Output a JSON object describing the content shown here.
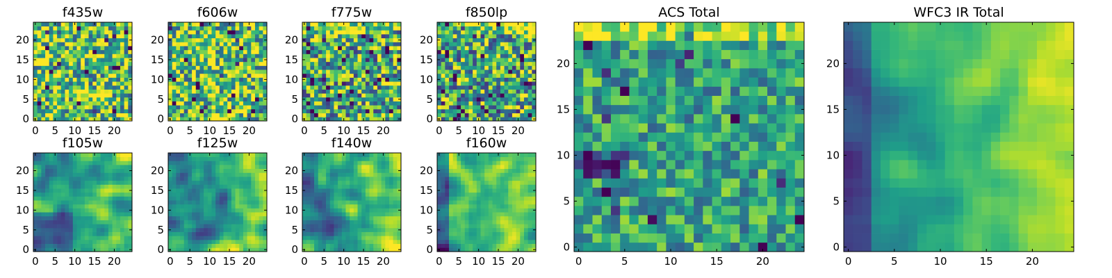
{
  "figure": {
    "colormap": "viridis",
    "colormap_stops": [
      "#440154",
      "#482878",
      "#3e4989",
      "#31688e",
      "#26828e",
      "#1f9e89",
      "#35b779",
      "#6ece58",
      "#b5de2b",
      "#fde725"
    ],
    "axis_color": "#000000",
    "background": "#ffffff"
  },
  "chart_data": [
    {
      "type": "heatmap",
      "title": "f435w",
      "xticks": [
        0,
        5,
        10,
        15,
        20
      ],
      "yticks": [
        0,
        5,
        10,
        15,
        20
      ],
      "grid_size": [
        25,
        25
      ],
      "texture": "noise",
      "pattern": "uniform-noise",
      "value_range": [
        0,
        1
      ]
    },
    {
      "type": "heatmap",
      "title": "f606w",
      "xticks": [
        0,
        5,
        10,
        15,
        20
      ],
      "yticks": [
        0,
        5,
        10,
        15,
        20
      ],
      "grid_size": [
        25,
        25
      ],
      "texture": "noise",
      "pattern": "uniform-noise",
      "value_range": [
        0,
        1
      ]
    },
    {
      "type": "heatmap",
      "title": "f775w",
      "xticks": [
        0,
        5,
        10,
        15,
        20
      ],
      "yticks": [
        0,
        5,
        10,
        15,
        20
      ],
      "grid_size": [
        25,
        25
      ],
      "texture": "noise",
      "pattern": "noise-bright-top-edge",
      "value_range": [
        0,
        1
      ]
    },
    {
      "type": "heatmap",
      "title": "f850lp",
      "xticks": [
        0,
        5,
        10,
        15,
        20
      ],
      "yticks": [
        0,
        5,
        10,
        15,
        20
      ],
      "grid_size": [
        25,
        25
      ],
      "texture": "noise",
      "pattern": "noise-bright-top-edge",
      "value_range": [
        0,
        1
      ]
    },
    {
      "type": "heatmap",
      "title": "f105w",
      "xticks": [
        0,
        5,
        10,
        15,
        20
      ],
      "yticks": [
        0,
        5,
        10,
        15,
        20
      ],
      "grid_size": [
        25,
        25
      ],
      "texture": "smooth",
      "pattern": "smooth-bright-right-dark-lower-left",
      "value_range": [
        0,
        1
      ]
    },
    {
      "type": "heatmap",
      "title": "f125w",
      "xticks": [
        0,
        5,
        10,
        15,
        20
      ],
      "yticks": [
        0,
        5,
        10,
        15,
        20
      ],
      "grid_size": [
        25,
        25
      ],
      "texture": "smooth",
      "pattern": "smooth-bright-right-dark-left",
      "value_range": [
        0,
        1
      ]
    },
    {
      "type": "heatmap",
      "title": "f140w",
      "xticks": [
        0,
        5,
        10,
        15,
        20
      ],
      "yticks": [
        0,
        5,
        10,
        15,
        20
      ],
      "grid_size": [
        25,
        25
      ],
      "texture": "smooth",
      "pattern": "smooth-bright-right-dark-left",
      "value_range": [
        0,
        1
      ]
    },
    {
      "type": "heatmap",
      "title": "f160w",
      "xticks": [
        0,
        5,
        10,
        15,
        20
      ],
      "yticks": [
        0,
        5,
        10,
        15,
        20
      ],
      "grid_size": [
        25,
        25
      ],
      "texture": "smooth",
      "pattern": "smooth-dark-left-edge",
      "value_range": [
        0,
        1
      ]
    },
    {
      "type": "heatmap",
      "title": "ACS Total",
      "xticks": [
        0,
        5,
        10,
        15,
        20
      ],
      "yticks": [
        0,
        5,
        10,
        15,
        20
      ],
      "grid_size": [
        25,
        25
      ],
      "texture": "noise",
      "pattern": "noise-bright-top-dark-bottom-left",
      "value_range": [
        0,
        1
      ]
    },
    {
      "type": "heatmap",
      "title": "WFC3 IR Total",
      "xticks": [
        0,
        5,
        10,
        15,
        20
      ],
      "yticks": [
        0,
        5,
        10,
        15,
        20
      ],
      "grid_size": [
        25,
        25
      ],
      "texture": "smooth",
      "pattern": "smooth-dark-left-bright-upper-center",
      "value_range": [
        0,
        1
      ]
    }
  ]
}
